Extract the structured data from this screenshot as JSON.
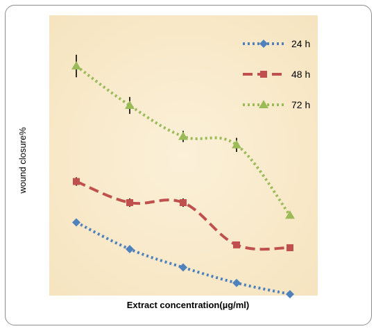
{
  "chart_data": {
    "type": "line",
    "title": "",
    "xlabel": "Extract concentration(µg/ml)",
    "ylabel": "wound closure%",
    "x": [
      1,
      2,
      3,
      4,
      5
    ],
    "ylim": [
      0,
      100
    ],
    "grid": false,
    "legend": "top-right",
    "plot_background": "#f8e8c8",
    "series": [
      {
        "name": "24 h",
        "color": "#4f81bd",
        "marker": "diamond",
        "dash": "dotted",
        "values": [
          26,
          16.5,
          10,
          4.5,
          0.5
        ],
        "errors": [
          0,
          0,
          0,
          0,
          0
        ]
      },
      {
        "name": "48 h",
        "color": "#c0504d",
        "marker": "square",
        "dash": "dashed",
        "values": [
          40.5,
          33,
          33,
          18,
          17
        ],
        "errors": [
          1.5,
          1.5,
          1.5,
          0,
          0
        ]
      },
      {
        "name": "72 h",
        "color": "#9bbb59",
        "marker": "triangle",
        "dash": "dotted",
        "values": [
          81.5,
          67.5,
          56.5,
          53.5,
          28.5
        ],
        "errors": [
          4,
          3,
          2,
          2.5,
          0
        ]
      }
    ]
  }
}
